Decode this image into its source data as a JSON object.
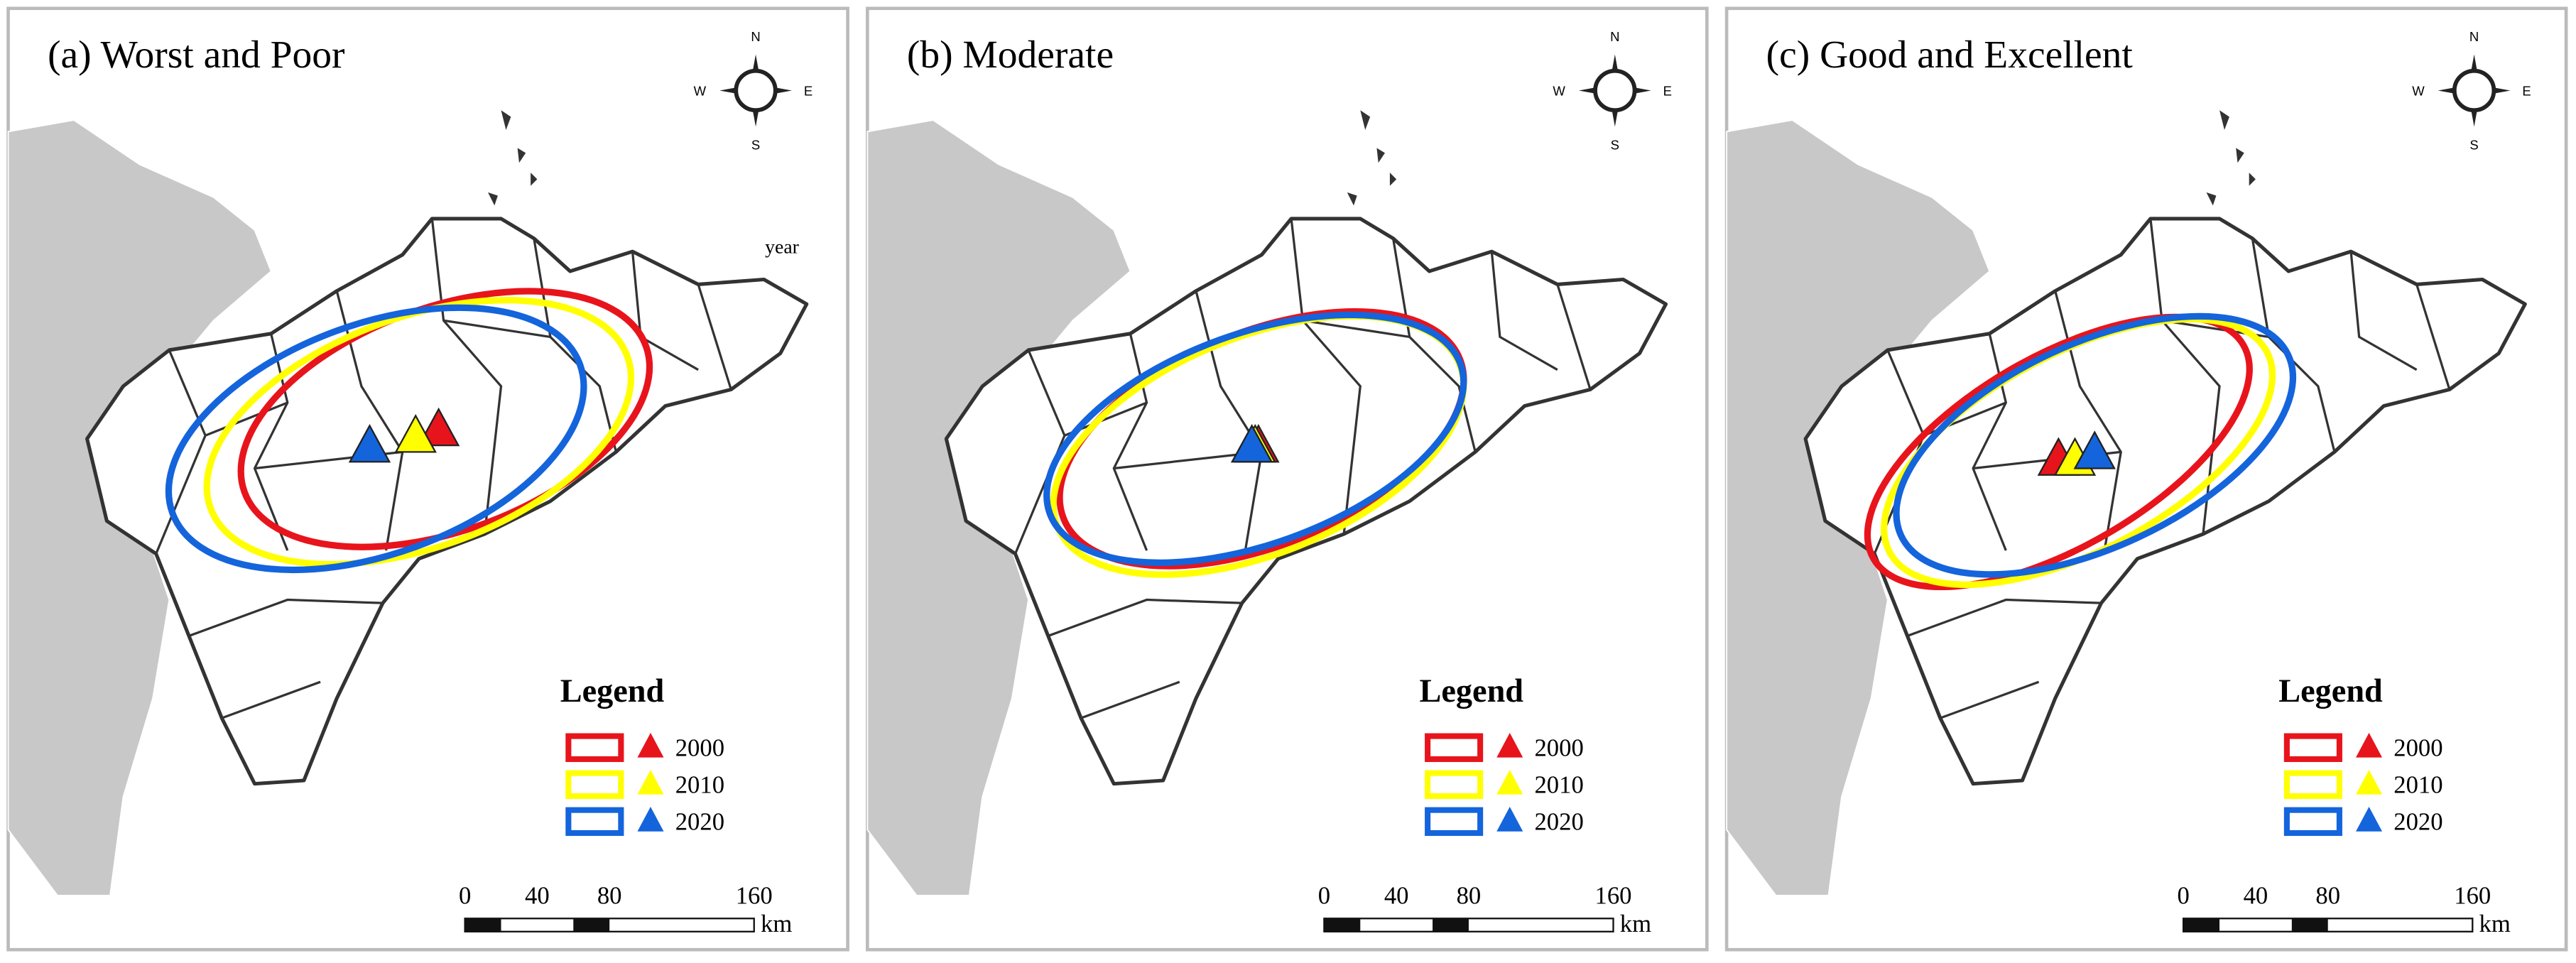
{
  "panels": [
    {
      "title": "(a) Worst and Poor",
      "compass": {
        "n": "N",
        "s": "S",
        "w": "W",
        "e": "E"
      },
      "note": "year",
      "legend": {
        "title": "Legend",
        "entries": [
          {
            "label": "2000",
            "color": "#e8141c"
          },
          {
            "label": "2010",
            "color": "#ffff00"
          },
          {
            "label": "2020",
            "color": "#1464dc"
          }
        ]
      },
      "scale_bar": {
        "ticks": [
          0,
          40,
          80,
          160
        ],
        "unit": "km"
      }
    },
    {
      "title": "(b) Moderate",
      "compass": {
        "n": "N",
        "s": "S",
        "w": "W",
        "e": "E"
      },
      "legend": {
        "title": "Legend",
        "entries": [
          {
            "label": "2000",
            "color": "#e8141c"
          },
          {
            "label": "2010",
            "color": "#ffff00"
          },
          {
            "label": "2020",
            "color": "#1464dc"
          }
        ]
      },
      "scale_bar": {
        "ticks": [
          0,
          40,
          80,
          160
        ],
        "unit": "km"
      }
    },
    {
      "title": "(c) Good and Excellent",
      "compass": {
        "n": "N",
        "s": "S",
        "w": "W",
        "e": "E"
      },
      "legend": {
        "title": "Legend",
        "entries": [
          {
            "label": "2000",
            "color": "#e8141c"
          },
          {
            "label": "2010",
            "color": "#ffff00"
          },
          {
            "label": "2020",
            "color": "#1464dc"
          }
        ]
      },
      "scale_bar": {
        "ticks": [
          0,
          40,
          80,
          160
        ],
        "unit": "km"
      }
    }
  ]
}
